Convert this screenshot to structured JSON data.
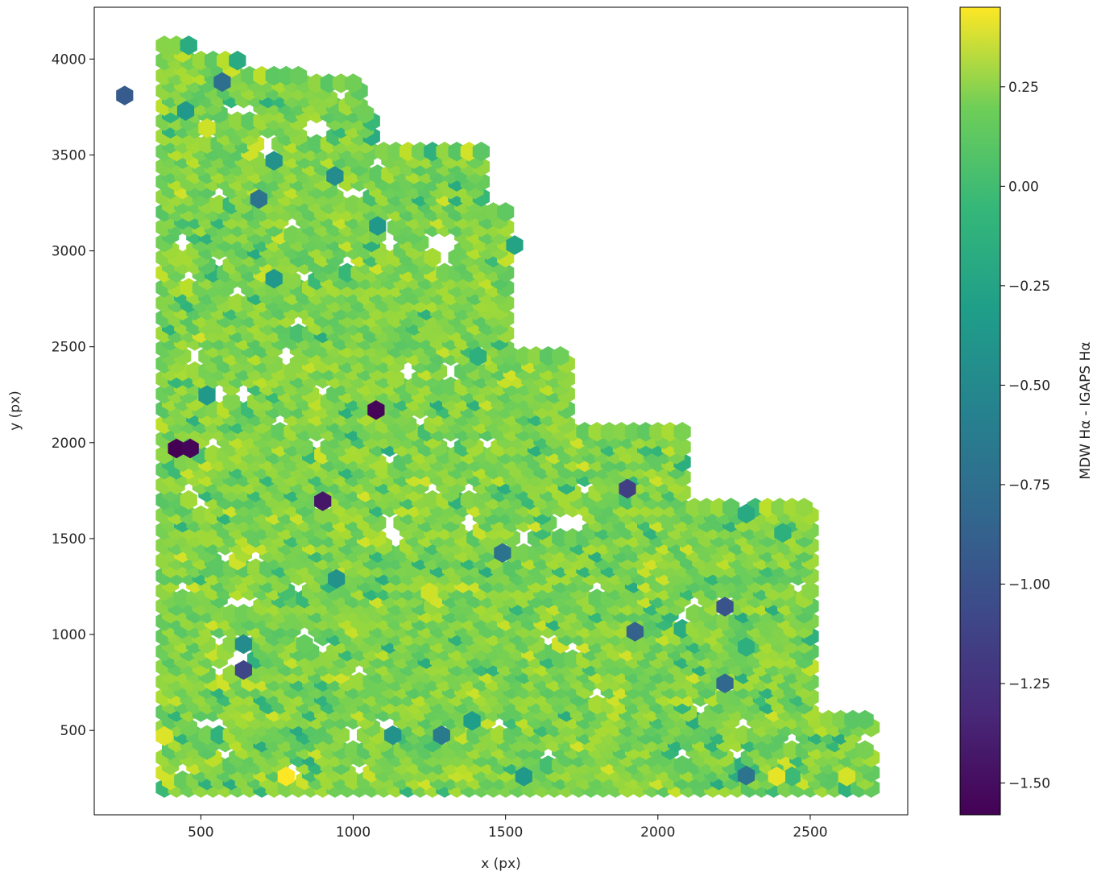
{
  "chart_data": {
    "type": "heatmap",
    "subtype": "hexbin",
    "title": "",
    "xlabel": "x (px)",
    "ylabel": "y (px)",
    "colorbar_label": "MDW Hα - IGAPS Hα",
    "colormap": "viridis",
    "color_range": [
      -1.58,
      0.45
    ],
    "xlim": [
      150,
      2820
    ],
    "ylim": [
      60,
      4270
    ],
    "x_ticks": [
      500,
      1000,
      1500,
      2000,
      2500
    ],
    "y_ticks": [
      500,
      1000,
      1500,
      2000,
      2500,
      3000,
      3500,
      4000
    ],
    "colorbar_ticks": [
      0.25,
      0.0,
      -0.25,
      -0.5,
      -0.75,
      -1.0,
      -1.25,
      -1.5
    ],
    "colorbar_tick_labels": [
      "0.25",
      "0.00",
      "−0.25",
      "−0.50",
      "−0.75",
      "−1.00",
      "−1.25",
      "−1.50"
    ],
    "grid": false,
    "typical_value": 0.05,
    "footprint_rows": [
      {
        "y_min": 200,
        "y_max": 4100,
        "x_min": 380,
        "x_max": 460
      },
      {
        "y_min": 200,
        "y_max": 4030,
        "x_min": 380,
        "x_max": 620
      },
      {
        "y_min": 200,
        "y_max": 3950,
        "x_min": 380,
        "x_max": 820
      },
      {
        "y_min": 200,
        "y_max": 3900,
        "x_min": 380,
        "x_max": 1020
      },
      {
        "y_min": 200,
        "y_max": 3750,
        "x_min": 380,
        "x_max": 1060
      },
      {
        "y_min": 200,
        "y_max": 3530,
        "x_min": 380,
        "x_max": 1430
      },
      {
        "y_min": 200,
        "y_max": 3230,
        "x_min": 380,
        "x_max": 1500
      },
      {
        "y_min": 200,
        "y_max": 2980,
        "x_min": 380,
        "x_max": 1440
      },
      {
        "y_min": 200,
        "y_max": 2700,
        "x_min": 380,
        "x_max": 1300
      },
      {
        "y_min": 200,
        "y_max": 2480,
        "x_min": 380,
        "x_max": 1700
      },
      {
        "y_min": 200,
        "y_max": 2080,
        "x_min": 380,
        "x_max": 2090
      },
      {
        "y_min": 200,
        "y_max": 1680,
        "x_min": 380,
        "x_max": 2500
      },
      {
        "y_min": 200,
        "y_max": 820,
        "x_min": 380,
        "x_max": 2300
      },
      {
        "y_min": 200,
        "y_max": 570,
        "x_min": 380,
        "x_max": 2700
      }
    ],
    "outlier_bins": [
      {
        "x": 250,
        "y": 3810,
        "value": -1.0
      },
      {
        "x": 420,
        "y": 1970,
        "value": -1.58
      },
      {
        "x": 465,
        "y": 1970,
        "value": -1.55
      },
      {
        "x": 1075,
        "y": 2170,
        "value": -1.55
      },
      {
        "x": 900,
        "y": 1695,
        "value": -1.45
      },
      {
        "x": 1900,
        "y": 1760,
        "value": -1.2
      },
      {
        "x": 2220,
        "y": 1145,
        "value": -1.05
      },
      {
        "x": 1925,
        "y": 1015,
        "value": -0.95
      },
      {
        "x": 2220,
        "y": 745,
        "value": -0.9
      },
      {
        "x": 640,
        "y": 815,
        "value": -1.15
      },
      {
        "x": 570,
        "y": 3880,
        "value": -0.85
      },
      {
        "x": 690,
        "y": 3270,
        "value": -0.8
      },
      {
        "x": 1490,
        "y": 1425,
        "value": -0.8
      },
      {
        "x": 2290,
        "y": 265,
        "value": -0.8
      },
      {
        "x": 1290,
        "y": 475,
        "value": -0.75
      },
      {
        "x": 940,
        "y": 3390,
        "value": -0.6
      },
      {
        "x": 740,
        "y": 3470,
        "value": -0.55
      },
      {
        "x": 520,
        "y": 2245,
        "value": -0.5
      },
      {
        "x": 945,
        "y": 1290,
        "value": -0.55
      },
      {
        "x": 640,
        "y": 950,
        "value": -0.6
      },
      {
        "x": 1130,
        "y": 475,
        "value": -0.55
      },
      {
        "x": 1560,
        "y": 260,
        "value": -0.5
      },
      {
        "x": 1390,
        "y": 550,
        "value": -0.45
      },
      {
        "x": 1080,
        "y": 3130,
        "value": -0.5
      },
      {
        "x": 1530,
        "y": 3030,
        "value": -0.4
      },
      {
        "x": 740,
        "y": 2855,
        "value": -0.5
      },
      {
        "x": 450,
        "y": 3730,
        "value": -0.5
      },
      {
        "x": 1410,
        "y": 2450,
        "value": -0.3
      },
      {
        "x": 2290,
        "y": 1630,
        "value": -0.35
      },
      {
        "x": 2410,
        "y": 1530,
        "value": -0.3
      },
      {
        "x": 2290,
        "y": 935,
        "value": -0.3
      },
      {
        "x": 2440,
        "y": 260,
        "value": -0.2
      },
      {
        "x": 780,
        "y": 260,
        "value": 0.45
      },
      {
        "x": 380,
        "y": 470,
        "value": 0.35
      },
      {
        "x": 2390,
        "y": 260,
        "value": 0.38
      },
      {
        "x": 2620,
        "y": 260,
        "value": 0.32
      },
      {
        "x": 1250,
        "y": 1220,
        "value": 0.3
      },
      {
        "x": 520,
        "y": 3640,
        "value": 0.3
      }
    ],
    "empty_bins": [
      {
        "x": 600,
        "y": 3720
      },
      {
        "x": 660,
        "y": 3720
      },
      {
        "x": 960,
        "y": 3810
      },
      {
        "x": 900,
        "y": 3640
      },
      {
        "x": 860,
        "y": 3640
      },
      {
        "x": 720,
        "y": 3560
      },
      {
        "x": 1080,
        "y": 3470
      },
      {
        "x": 560,
        "y": 3300
      },
      {
        "x": 980,
        "y": 3300
      },
      {
        "x": 1020,
        "y": 3300
      },
      {
        "x": 800,
        "y": 3130
      },
      {
        "x": 1100,
        "y": 3130
      },
      {
        "x": 440,
        "y": 3040
      },
      {
        "x": 1120,
        "y": 3040
      },
      {
        "x": 1260,
        "y": 3040
      },
      {
        "x": 1320,
        "y": 3040
      },
      {
        "x": 560,
        "y": 2960
      },
      {
        "x": 980,
        "y": 2960
      },
      {
        "x": 1300,
        "y": 2960
      },
      {
        "x": 840,
        "y": 2870
      },
      {
        "x": 460,
        "y": 2870
      },
      {
        "x": 620,
        "y": 2780
      },
      {
        "x": 820,
        "y": 2620
      },
      {
        "x": 480,
        "y": 2450
      },
      {
        "x": 780,
        "y": 2450
      },
      {
        "x": 900,
        "y": 2280
      },
      {
        "x": 1180,
        "y": 2370
      },
      {
        "x": 1320,
        "y": 2370
      },
      {
        "x": 560,
        "y": 2250
      },
      {
        "x": 640,
        "y": 2250
      },
      {
        "x": 760,
        "y": 2110
      },
      {
        "x": 1220,
        "y": 2110
      },
      {
        "x": 540,
        "y": 2000
      },
      {
        "x": 880,
        "y": 2000
      },
      {
        "x": 1320,
        "y": 2000
      },
      {
        "x": 1440,
        "y": 2000
      },
      {
        "x": 1120,
        "y": 1920
      },
      {
        "x": 460,
        "y": 1750
      },
      {
        "x": 1260,
        "y": 1750
      },
      {
        "x": 1380,
        "y": 1750
      },
      {
        "x": 1760,
        "y": 1750
      },
      {
        "x": 500,
        "y": 1670
      },
      {
        "x": 1120,
        "y": 1580
      },
      {
        "x": 1380,
        "y": 1580
      },
      {
        "x": 1680,
        "y": 1580
      },
      {
        "x": 1740,
        "y": 1580
      },
      {
        "x": 1560,
        "y": 1500
      },
      {
        "x": 580,
        "y": 1420
      },
      {
        "x": 680,
        "y": 1420
      },
      {
        "x": 1140,
        "y": 1500
      },
      {
        "x": 440,
        "y": 1250
      },
      {
        "x": 820,
        "y": 1250
      },
      {
        "x": 1800,
        "y": 1250
      },
      {
        "x": 2460,
        "y": 1250
      },
      {
        "x": 600,
        "y": 1160
      },
      {
        "x": 660,
        "y": 1160
      },
      {
        "x": 2120,
        "y": 1160
      },
      {
        "x": 840,
        "y": 1000
      },
      {
        "x": 900,
        "y": 920
      },
      {
        "x": 1720,
        "y": 920
      },
      {
        "x": 2080,
        "y": 1080
      },
      {
        "x": 560,
        "y": 960
      },
      {
        "x": 1640,
        "y": 960
      },
      {
        "x": 560,
        "y": 810
      },
      {
        "x": 1020,
        "y": 810
      },
      {
        "x": 620,
        "y": 880
      },
      {
        "x": 1800,
        "y": 700
      },
      {
        "x": 500,
        "y": 550
      },
      {
        "x": 560,
        "y": 550
      },
      {
        "x": 1100,
        "y": 550
      },
      {
        "x": 1480,
        "y": 550
      },
      {
        "x": 2140,
        "y": 620
      },
      {
        "x": 1000,
        "y": 480
      },
      {
        "x": 2280,
        "y": 550
      },
      {
        "x": 2440,
        "y": 470
      },
      {
        "x": 2680,
        "y": 470
      },
      {
        "x": 580,
        "y": 390
      },
      {
        "x": 1640,
        "y": 390
      },
      {
        "x": 2080,
        "y": 390
      },
      {
        "x": 2260,
        "y": 390
      },
      {
        "x": 440,
        "y": 310
      },
      {
        "x": 800,
        "y": 310
      },
      {
        "x": 1020,
        "y": 310
      }
    ]
  }
}
